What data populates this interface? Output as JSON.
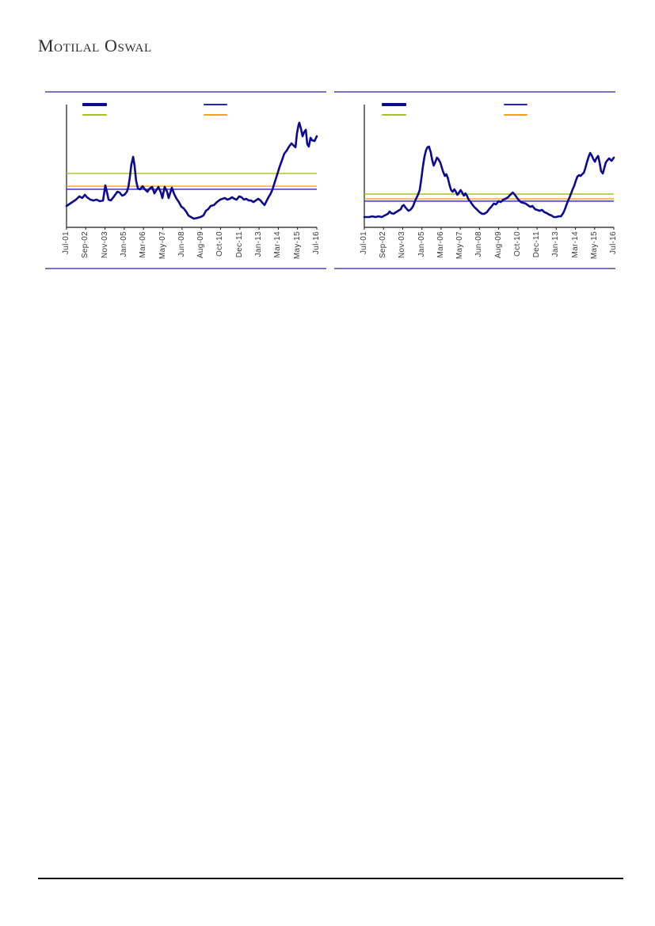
{
  "page": {
    "brand_logo_text": "Motilal Oswal"
  },
  "chart_data": [
    {
      "type": "line",
      "title": "",
      "x_tick_labels": [
        "Jul-01",
        "Sep-02",
        "Nov-03",
        "Jan-05",
        "Mar-06",
        "May-07",
        "Jun-08",
        "Aug-09",
        "Oct-10",
        "Dec-11",
        "Jan-13",
        "Mar-14",
        "May-15",
        "Jul-16"
      ],
      "y_tick_labels": [],
      "grid": false,
      "legend_position": "top",
      "legend_entries": [
        {
          "label": "",
          "swatch_color": "#0b0b8f",
          "style": "thick-line"
        },
        {
          "label": "",
          "swatch_color": "#2323cc",
          "style": "thin-line"
        },
        {
          "label": "",
          "swatch_color": "#a9c21d",
          "style": "thin-line"
        },
        {
          "label": "",
          "swatch_color": "#ffa013",
          "style": "thin-line"
        }
      ],
      "y_range_norm": [
        0,
        1
      ],
      "series": [
        {
          "name": "main-series",
          "color": "#0b0b8f",
          "points_norm": [
            [
              0.0,
              0.174
            ],
            [
              0.019,
              0.2
            ],
            [
              0.038,
              0.226
            ],
            [
              0.051,
              0.252
            ],
            [
              0.063,
              0.239
            ],
            [
              0.073,
              0.265
            ],
            [
              0.082,
              0.245
            ],
            [
              0.095,
              0.226
            ],
            [
              0.108,
              0.219
            ],
            [
              0.12,
              0.226
            ],
            [
              0.133,
              0.213
            ],
            [
              0.146,
              0.219
            ],
            [
              0.155,
              0.342
            ],
            [
              0.161,
              0.29
            ],
            [
              0.168,
              0.226
            ],
            [
              0.177,
              0.219
            ],
            [
              0.19,
              0.252
            ],
            [
              0.203,
              0.29
            ],
            [
              0.212,
              0.284
            ],
            [
              0.222,
              0.258
            ],
            [
              0.231,
              0.265
            ],
            [
              0.241,
              0.29
            ],
            [
              0.247,
              0.329
            ],
            [
              0.253,
              0.406
            ],
            [
              0.259,
              0.51
            ],
            [
              0.266,
              0.574
            ],
            [
              0.272,
              0.497
            ],
            [
              0.278,
              0.381
            ],
            [
              0.285,
              0.316
            ],
            [
              0.294,
              0.31
            ],
            [
              0.304,
              0.335
            ],
            [
              0.313,
              0.31
            ],
            [
              0.323,
              0.29
            ],
            [
              0.332,
              0.316
            ],
            [
              0.342,
              0.329
            ],
            [
              0.351,
              0.277
            ],
            [
              0.361,
              0.31
            ],
            [
              0.367,
              0.329
            ],
            [
              0.377,
              0.284
            ],
            [
              0.383,
              0.239
            ],
            [
              0.392,
              0.329
            ],
            [
              0.402,
              0.29
            ],
            [
              0.408,
              0.239
            ],
            [
              0.415,
              0.284
            ],
            [
              0.421,
              0.323
            ],
            [
              0.43,
              0.271
            ],
            [
              0.44,
              0.232
            ],
            [
              0.449,
              0.206
            ],
            [
              0.459,
              0.168
            ],
            [
              0.468,
              0.155
            ],
            [
              0.478,
              0.129
            ],
            [
              0.487,
              0.097
            ],
            [
              0.497,
              0.084
            ],
            [
              0.509,
              0.071
            ],
            [
              0.522,
              0.077
            ],
            [
              0.535,
              0.084
            ],
            [
              0.547,
              0.097
            ],
            [
              0.557,
              0.135
            ],
            [
              0.566,
              0.148
            ],
            [
              0.576,
              0.174
            ],
            [
              0.589,
              0.181
            ],
            [
              0.601,
              0.206
            ],
            [
              0.614,
              0.226
            ],
            [
              0.623,
              0.232
            ],
            [
              0.633,
              0.239
            ],
            [
              0.642,
              0.226
            ],
            [
              0.652,
              0.232
            ],
            [
              0.661,
              0.245
            ],
            [
              0.671,
              0.232
            ],
            [
              0.68,
              0.226
            ],
            [
              0.69,
              0.252
            ],
            [
              0.699,
              0.245
            ],
            [
              0.709,
              0.226
            ],
            [
              0.718,
              0.232
            ],
            [
              0.728,
              0.219
            ],
            [
              0.737,
              0.219
            ],
            [
              0.747,
              0.206
            ],
            [
              0.756,
              0.219
            ],
            [
              0.766,
              0.232
            ],
            [
              0.775,
              0.219
            ],
            [
              0.785,
              0.194
            ],
            [
              0.791,
              0.181
            ],
            [
              0.797,
              0.206
            ],
            [
              0.807,
              0.245
            ],
            [
              0.816,
              0.277
            ],
            [
              0.823,
              0.31
            ],
            [
              0.832,
              0.368
            ],
            [
              0.842,
              0.432
            ],
            [
              0.851,
              0.49
            ],
            [
              0.861,
              0.548
            ],
            [
              0.87,
              0.6
            ],
            [
              0.88,
              0.626
            ],
            [
              0.889,
              0.658
            ],
            [
              0.899,
              0.684
            ],
            [
              0.908,
              0.665
            ],
            [
              0.915,
              0.652
            ],
            [
              0.921,
              0.768
            ],
            [
              0.927,
              0.832
            ],
            [
              0.93,
              0.852
            ],
            [
              0.937,
              0.8
            ],
            [
              0.943,
              0.742
            ],
            [
              0.949,
              0.774
            ],
            [
              0.956,
              0.794
            ],
            [
              0.962,
              0.677
            ],
            [
              0.968,
              0.658
            ],
            [
              0.975,
              0.729
            ],
            [
              0.981,
              0.71
            ],
            [
              0.991,
              0.703
            ],
            [
              1.0,
              0.742
            ]
          ]
        }
      ],
      "reference_lines": [
        {
          "name": "upper-reference-line",
          "color": "#a9c21d",
          "level_norm": 0.439
        },
        {
          "name": "mid-reference-line",
          "color": "#ffa013",
          "level_norm": 0.335
        },
        {
          "name": "lower-reference-line",
          "color": "#2323cc",
          "level_norm": 0.31
        }
      ]
    },
    {
      "type": "line",
      "title": "",
      "x_tick_labels": [
        "Jul-01",
        "Sep-02",
        "Nov-03",
        "Jan-05",
        "Mar-06",
        "May-07",
        "Jun-08",
        "Aug-09",
        "Oct-10",
        "Dec-11",
        "Jan-13",
        "Mar-14",
        "May-15",
        "Jul-16"
      ],
      "y_tick_labels": [],
      "grid": false,
      "legend_position": "top",
      "legend_entries": [
        {
          "label": "",
          "swatch_color": "#0b0b8f",
          "style": "thick-line"
        },
        {
          "label": "",
          "swatch_color": "#2323cc",
          "style": "thin-line"
        },
        {
          "label": "",
          "swatch_color": "#a9c21d",
          "style": "thin-line"
        },
        {
          "label": "",
          "swatch_color": "#ffa013",
          "style": "thin-line"
        }
      ],
      "y_range_norm": [
        0,
        1
      ],
      "series": [
        {
          "name": "main-series",
          "color": "#0b0b8f",
          "points_norm": [
            [
              0.0,
              0.084
            ],
            [
              0.019,
              0.084
            ],
            [
              0.032,
              0.09
            ],
            [
              0.044,
              0.084
            ],
            [
              0.057,
              0.09
            ],
            [
              0.07,
              0.084
            ],
            [
              0.082,
              0.097
            ],
            [
              0.095,
              0.11
            ],
            [
              0.101,
              0.129
            ],
            [
              0.108,
              0.116
            ],
            [
              0.117,
              0.11
            ],
            [
              0.127,
              0.123
            ],
            [
              0.136,
              0.135
            ],
            [
              0.146,
              0.148
            ],
            [
              0.152,
              0.174
            ],
            [
              0.158,
              0.181
            ],
            [
              0.165,
              0.161
            ],
            [
              0.171,
              0.148
            ],
            [
              0.177,
              0.135
            ],
            [
              0.184,
              0.142
            ],
            [
              0.19,
              0.155
            ],
            [
              0.196,
              0.174
            ],
            [
              0.203,
              0.213
            ],
            [
              0.209,
              0.239
            ],
            [
              0.215,
              0.265
            ],
            [
              0.222,
              0.303
            ],
            [
              0.228,
              0.387
            ],
            [
              0.234,
              0.484
            ],
            [
              0.241,
              0.574
            ],
            [
              0.247,
              0.626
            ],
            [
              0.253,
              0.652
            ],
            [
              0.259,
              0.658
            ],
            [
              0.266,
              0.613
            ],
            [
              0.272,
              0.548
            ],
            [
              0.278,
              0.503
            ],
            [
              0.285,
              0.535
            ],
            [
              0.291,
              0.568
            ],
            [
              0.297,
              0.555
            ],
            [
              0.304,
              0.529
            ],
            [
              0.31,
              0.49
            ],
            [
              0.316,
              0.452
            ],
            [
              0.323,
              0.419
            ],
            [
              0.329,
              0.432
            ],
            [
              0.335,
              0.4
            ],
            [
              0.342,
              0.342
            ],
            [
              0.348,
              0.303
            ],
            [
              0.354,
              0.29
            ],
            [
              0.361,
              0.31
            ],
            [
              0.367,
              0.29
            ],
            [
              0.373,
              0.265
            ],
            [
              0.38,
              0.284
            ],
            [
              0.386,
              0.303
            ],
            [
              0.392,
              0.284
            ],
            [
              0.399,
              0.258
            ],
            [
              0.405,
              0.277
            ],
            [
              0.411,
              0.258
            ],
            [
              0.418,
              0.226
            ],
            [
              0.424,
              0.213
            ],
            [
              0.43,
              0.194
            ],
            [
              0.437,
              0.174
            ],
            [
              0.443,
              0.161
            ],
            [
              0.453,
              0.142
            ],
            [
              0.462,
              0.123
            ],
            [
              0.472,
              0.11
            ],
            [
              0.481,
              0.11
            ],
            [
              0.491,
              0.123
            ],
            [
              0.5,
              0.148
            ],
            [
              0.509,
              0.168
            ],
            [
              0.519,
              0.194
            ],
            [
              0.528,
              0.187
            ],
            [
              0.538,
              0.213
            ],
            [
              0.547,
              0.206
            ],
            [
              0.557,
              0.226
            ],
            [
              0.566,
              0.232
            ],
            [
              0.576,
              0.245
            ],
            [
              0.585,
              0.265
            ],
            [
              0.595,
              0.284
            ],
            [
              0.601,
              0.271
            ],
            [
              0.608,
              0.252
            ],
            [
              0.617,
              0.226
            ],
            [
              0.627,
              0.206
            ],
            [
              0.636,
              0.2
            ],
            [
              0.646,
              0.194
            ],
            [
              0.655,
              0.181
            ],
            [
              0.665,
              0.168
            ],
            [
              0.674,
              0.174
            ],
            [
              0.684,
              0.148
            ],
            [
              0.693,
              0.142
            ],
            [
              0.703,
              0.135
            ],
            [
              0.712,
              0.142
            ],
            [
              0.722,
              0.123
            ],
            [
              0.731,
              0.116
            ],
            [
              0.741,
              0.103
            ],
            [
              0.75,
              0.097
            ],
            [
              0.759,
              0.084
            ],
            [
              0.769,
              0.084
            ],
            [
              0.778,
              0.09
            ],
            [
              0.788,
              0.09
            ],
            [
              0.797,
              0.116
            ],
            [
              0.804,
              0.148
            ],
            [
              0.81,
              0.181
            ],
            [
              0.816,
              0.213
            ],
            [
              0.823,
              0.245
            ],
            [
              0.829,
              0.277
            ],
            [
              0.835,
              0.31
            ],
            [
              0.842,
              0.342
            ],
            [
              0.848,
              0.381
            ],
            [
              0.854,
              0.413
            ],
            [
              0.861,
              0.426
            ],
            [
              0.867,
              0.419
            ],
            [
              0.873,
              0.432
            ],
            [
              0.88,
              0.445
            ],
            [
              0.886,
              0.484
            ],
            [
              0.892,
              0.529
            ],
            [
              0.899,
              0.574
            ],
            [
              0.905,
              0.606
            ],
            [
              0.911,
              0.587
            ],
            [
              0.918,
              0.555
            ],
            [
              0.924,
              0.535
            ],
            [
              0.93,
              0.561
            ],
            [
              0.937,
              0.581
            ],
            [
              0.943,
              0.529
            ],
            [
              0.949,
              0.458
            ],
            [
              0.956,
              0.439
            ],
            [
              0.962,
              0.484
            ],
            [
              0.968,
              0.529
            ],
            [
              0.975,
              0.548
            ],
            [
              0.981,
              0.561
            ],
            [
              0.991,
              0.542
            ],
            [
              1.0,
              0.568
            ]
          ]
        }
      ],
      "reference_lines": [
        {
          "name": "upper-reference-line",
          "color": "#a9c21d",
          "level_norm": 0.271
        },
        {
          "name": "mid-reference-line",
          "color": "#ffa013",
          "level_norm": 0.232
        },
        {
          "name": "lower-reference-line",
          "color": "#2323cc",
          "level_norm": 0.213
        }
      ]
    }
  ]
}
